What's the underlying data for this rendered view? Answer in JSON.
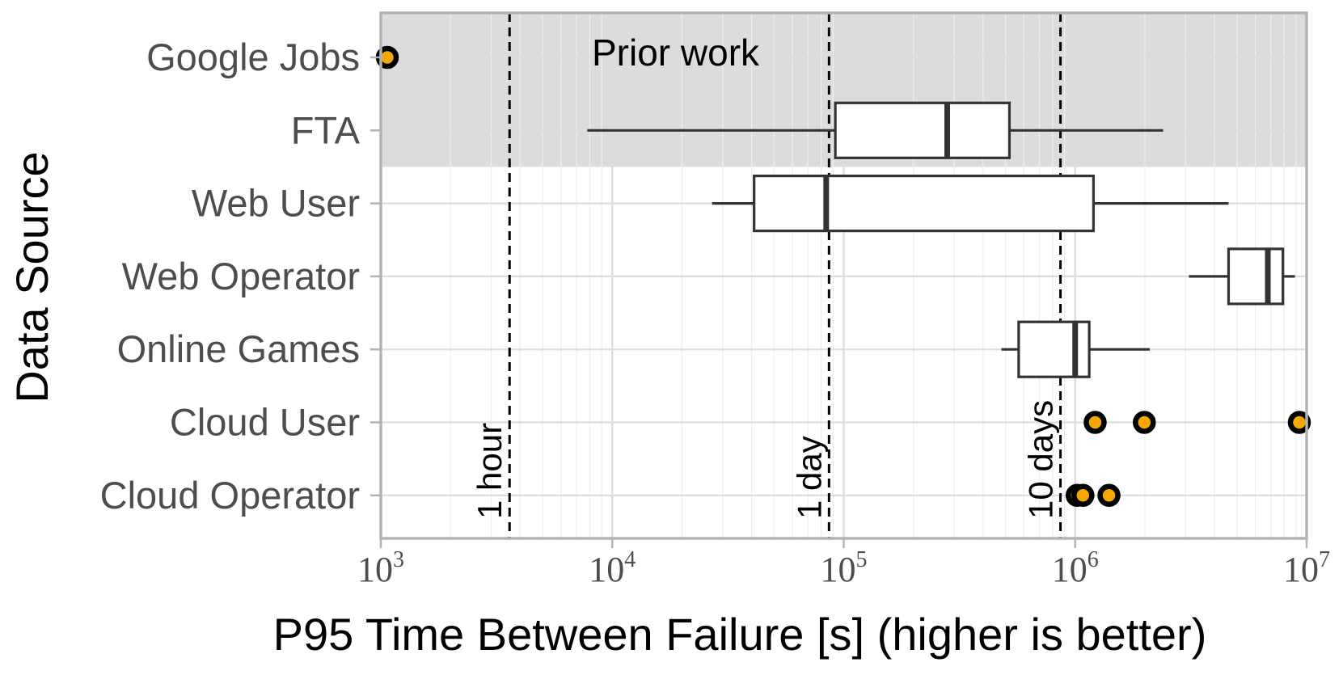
{
  "chart_data": {
    "type": "boxplot",
    "xlabel": "P95 Time Between Failure [s] (higher is better)",
    "ylabel": "Data Source",
    "x_scale": "log10",
    "xlim": [
      1000,
      10000000
    ],
    "x_ticks": [
      {
        "value": 1000,
        "base": "10",
        "exp": "3"
      },
      {
        "value": 10000,
        "base": "10",
        "exp": "4"
      },
      {
        "value": 100000,
        "base": "10",
        "exp": "5"
      },
      {
        "value": 1000000,
        "base": "10",
        "exp": "6"
      },
      {
        "value": 10000000,
        "base": "10",
        "exp": "7"
      }
    ],
    "grid": true,
    "categories": [
      "Google Jobs",
      "FTA",
      "Web User",
      "Web Operator",
      "Online Games",
      "Cloud User",
      "Cloud Operator"
    ],
    "boxes": [
      {
        "category": "FTA",
        "whisker_low": 7800,
        "q1": 92000,
        "median": 280000,
        "q3": 520000,
        "whisker_high": 2400000
      },
      {
        "category": "Web User",
        "whisker_low": 27000,
        "q1": 41000,
        "median": 84000,
        "q3": 1200000,
        "whisker_high": 4600000
      },
      {
        "category": "Web Operator",
        "whisker_low": 3100000,
        "q1": 4600000,
        "median": 6800000,
        "q3": 7900000,
        "whisker_high": 8900000
      },
      {
        "category": "Online Games",
        "whisker_low": 480000,
        "q1": 570000,
        "median": 1000000,
        "q3": 1150000,
        "whisker_high": 2100000
      }
    ],
    "points": [
      {
        "category": "Google Jobs",
        "x": 1050
      },
      {
        "category": "Cloud User",
        "x": 1220000
      },
      {
        "category": "Cloud User",
        "x": 1990000
      },
      {
        "category": "Cloud User",
        "x": 9300000
      },
      {
        "category": "Cloud Operator",
        "x": 1020000
      },
      {
        "category": "Cloud Operator",
        "x": 1080000
      },
      {
        "category": "Cloud Operator",
        "x": 1400000
      }
    ],
    "reference_lines": [
      {
        "x": 3600,
        "label": "1 hour"
      },
      {
        "x": 86400,
        "label": "1 day"
      },
      {
        "x": 864000,
        "label": "10 days"
      }
    ],
    "shaded_region": {
      "categories": [
        "Google Jobs",
        "FTA"
      ],
      "label": "Prior work"
    },
    "colors": {
      "shade": "#dcdcdc",
      "border": "#b3b3b3",
      "grid": "#dddddd",
      "grid_minor": "#eeeeee",
      "box_stroke": "#333333",
      "point_fill": "#f5a800",
      "point_stroke": "#000000"
    }
  }
}
